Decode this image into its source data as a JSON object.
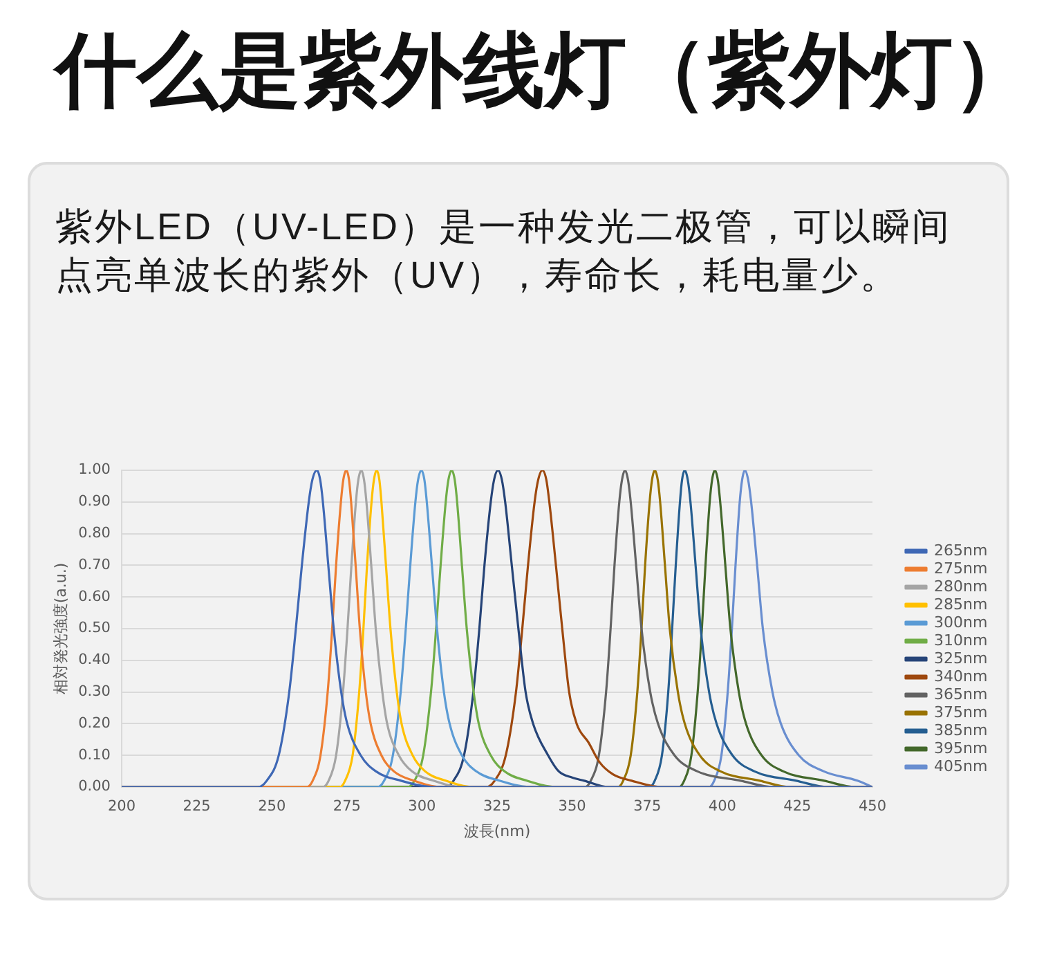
{
  "chart_data": {
    "type": "line",
    "title": "什么是紫外线灯（紫外灯）",
    "subtitle": "紫外LED（UV-LED）是一种发光二极管，可以瞬间点亮单波长的紫外（UV），寿命长，耗电量少。",
    "xlabel": "波長(nm)",
    "ylabel": "相対発光強度(a.u.)",
    "xlim": [
      200,
      450
    ],
    "xticks": [
      200,
      225,
      250,
      275,
      300,
      325,
      350,
      375,
      400,
      425,
      450
    ],
    "ylim": [
      0,
      1
    ],
    "yticks": [
      {
        "value": 0,
        "label": "0.00"
      },
      {
        "value": 0.1,
        "label": "0.10"
      },
      {
        "value": 0.2,
        "label": "0.20"
      },
      {
        "value": 0.3,
        "label": "0.30"
      },
      {
        "value": 0.4,
        "label": "0.40"
      },
      {
        "value": 0.5,
        "label": "0.50"
      },
      {
        "value": 0.6,
        "label": "0.60"
      },
      {
        "value": 0.7,
        "label": "0.70"
      },
      {
        "value": 0.8,
        "label": "0.80"
      },
      {
        "value": 0.9,
        "label": "0.90"
      },
      {
        "value": 1,
        "label": "1.00"
      }
    ],
    "grid": "y",
    "legend": "right",
    "marker": "none",
    "line_style": "solid",
    "series": [
      {
        "name": "265nm",
        "color": "#3f68b5",
        "x": [
          200,
          245.4,
          248.3,
          252.3,
          255.8,
          258.0,
          260.0,
          262.3,
          263.5,
          265.0,
          266.1,
          267.0,
          268.8,
          270.6,
          273.1,
          275.1,
          279.6,
          284.6,
          293.0,
          304.2,
          450
        ],
        "values": [
          0,
          0,
          0.02,
          0.1,
          0.3,
          0.5,
          0.7,
          0.9,
          0.97,
          1,
          0.97,
          0.9,
          0.7,
          0.5,
          0.3,
          0.2,
          0.1,
          0.05,
          0.02,
          0,
          0
        ]
      },
      {
        "name": "275nm",
        "color": "#ed7d31",
        "x": [
          200,
          261.6,
          263.6,
          266.2,
          268.6,
          270.1,
          271.4,
          273.0,
          273.8,
          274.8,
          275.7,
          276.4,
          277.9,
          279.3,
          281.3,
          282.9,
          286.5,
          290.6,
          297.3,
          306.3,
          450
        ],
        "values": [
          0,
          0,
          0.02,
          0.1,
          0.3,
          0.5,
          0.7,
          0.9,
          0.97,
          1,
          0.97,
          0.9,
          0.7,
          0.5,
          0.3,
          0.2,
          0.1,
          0.05,
          0.02,
          0,
          0
        ]
      },
      {
        "name": "280nm",
        "color": "#a5a5a5",
        "x": [
          200,
          266.9,
          268.9,
          271.4,
          273.7,
          275.2,
          276.5,
          278.0,
          278.8,
          279.8,
          280.7,
          281.5,
          283.1,
          284.6,
          286.8,
          288.4,
          292.3,
          296.6,
          303.8,
          313.4,
          450
        ],
        "values": [
          0,
          0,
          0.02,
          0.1,
          0.3,
          0.5,
          0.7,
          0.9,
          0.97,
          1,
          0.97,
          0.9,
          0.7,
          0.5,
          0.3,
          0.2,
          0.1,
          0.05,
          0.02,
          0,
          0
        ]
      },
      {
        "name": "285nm",
        "color": "#ffc000",
        "x": [
          200,
          272.6,
          274.4,
          276.9,
          279.1,
          280.5,
          281.7,
          283.2,
          284.0,
          284.9,
          285.8,
          286.5,
          288.0,
          289.5,
          291.6,
          293.2,
          296.9,
          301.0,
          307.9,
          317.1,
          450
        ],
        "values": [
          0,
          0,
          0.02,
          0.1,
          0.3,
          0.5,
          0.7,
          0.9,
          0.97,
          1,
          0.97,
          0.9,
          0.7,
          0.5,
          0.3,
          0.2,
          0.1,
          0.05,
          0.02,
          0,
          0
        ]
      },
      {
        "name": "300nm",
        "color": "#5b9bd5",
        "x": [
          200,
          285.2,
          287.4,
          290.3,
          292.9,
          294.6,
          296.1,
          297.8,
          298.7,
          299.8,
          300.8,
          301.6,
          303.3,
          305.0,
          307.3,
          309.2,
          313.3,
          318.0,
          325.8,
          336.2,
          450
        ],
        "values": [
          0,
          0,
          0.02,
          0.1,
          0.3,
          0.5,
          0.7,
          0.9,
          0.97,
          1,
          0.97,
          0.9,
          0.7,
          0.5,
          0.3,
          0.2,
          0.1,
          0.05,
          0.02,
          0,
          0
        ]
      },
      {
        "name": "310nm",
        "color": "#70ad47",
        "x": [
          200,
          295.3,
          297.5,
          300.4,
          303.0,
          304.7,
          306.2,
          307.9,
          308.8,
          309.9,
          310.9,
          311.7,
          313.3,
          314.9,
          317.2,
          318.9,
          322.9,
          327.4,
          334.9,
          344.9,
          450
        ],
        "values": [
          0,
          0,
          0.02,
          0.1,
          0.3,
          0.5,
          0.7,
          0.9,
          0.97,
          1,
          0.97,
          0.9,
          0.7,
          0.5,
          0.3,
          0.2,
          0.1,
          0.05,
          0.02,
          0,
          0
        ]
      },
      {
        "name": "325nm",
        "color": "#264478",
        "x": [
          200,
          307.9,
          310.5,
          314.0,
          317.1,
          319.1,
          320.8,
          322.9,
          324.0,
          325.3,
          326.6,
          327.7,
          329.9,
          332.1,
          334.5,
          337.0,
          342.0,
          345.5,
          350.0,
          354.0,
          362.0,
          450
        ],
        "values": [
          0,
          0,
          0.02,
          0.1,
          0.3,
          0.5,
          0.7,
          0.9,
          0.97,
          1,
          0.97,
          0.9,
          0.7,
          0.5,
          0.3,
          0.2,
          0.1,
          0.05,
          0.03,
          0.02,
          0,
          0
        ]
      },
      {
        "name": "340nm",
        "color": "#9e480e",
        "x": [
          200,
          321.3,
          324.2,
          327.9,
          331.3,
          333.4,
          335.3,
          337.5,
          338.7,
          340.1,
          341.4,
          342.4,
          344.6,
          346.7,
          349.0,
          351.5,
          355.5,
          359.0,
          363.6,
          369.8,
          380.0,
          450
        ],
        "values": [
          0,
          0,
          0.02,
          0.1,
          0.3,
          0.5,
          0.7,
          0.9,
          0.97,
          1,
          0.97,
          0.9,
          0.7,
          0.5,
          0.3,
          0.2,
          0.14,
          0.08,
          0.04,
          0.02,
          0,
          0
        ]
      },
      {
        "name": "365nm",
        "color": "#636363",
        "x": [
          200,
          354.2,
          356.2,
          358.9,
          361.3,
          362.8,
          364.1,
          365.7,
          366.6,
          367.6,
          368.6,
          369.5,
          371.3,
          373.1,
          376.0,
          378.6,
          384.1,
          391.6,
          406.1,
          417.1,
          450
        ],
        "values": [
          0,
          0,
          0.02,
          0.1,
          0.3,
          0.5,
          0.7,
          0.9,
          0.97,
          1,
          0.97,
          0.9,
          0.7,
          0.5,
          0.3,
          0.2,
          0.1,
          0.05,
          0.02,
          0,
          0
        ]
      },
      {
        "name": "375nm",
        "color": "#997300",
        "x": [
          200,
          365.2,
          367.0,
          369.5,
          371.7,
          373.1,
          374.3,
          375.8,
          376.6,
          377.5,
          378.5,
          379.3,
          380.9,
          382.5,
          385.2,
          387.5,
          392.5,
          399.3,
          412.5,
          422.5,
          450
        ],
        "values": [
          0,
          0,
          0.02,
          0.1,
          0.3,
          0.5,
          0.7,
          0.9,
          0.97,
          1,
          0.97,
          0.9,
          0.7,
          0.5,
          0.3,
          0.2,
          0.1,
          0.05,
          0.02,
          0,
          0
        ]
      },
      {
        "name": "385nm",
        "color": "#255e91",
        "x": [
          200,
          375.7,
          377.5,
          379.9,
          382.0,
          383.3,
          384.5,
          385.9,
          386.6,
          387.5,
          388.5,
          389.4,
          391.1,
          392.8,
          395.6,
          398.1,
          403.4,
          410.6,
          424.6,
          435.2,
          450
        ],
        "values": [
          0,
          0,
          0.02,
          0.1,
          0.3,
          0.5,
          0.7,
          0.9,
          0.97,
          1,
          0.97,
          0.9,
          0.7,
          0.5,
          0.3,
          0.2,
          0.1,
          0.05,
          0.02,
          0,
          0
        ]
      },
      {
        "name": "395nm",
        "color": "#43682b",
        "x": [
          200,
          385.5,
          387.3,
          389.7,
          391.8,
          393.2,
          394.4,
          395.8,
          396.6,
          397.5,
          398.5,
          399.3,
          401.0,
          402.7,
          405.5,
          407.9,
          413.1,
          420.2,
          433.9,
          444.3,
          450
        ],
        "values": [
          0,
          0,
          0.02,
          0.1,
          0.3,
          0.5,
          0.7,
          0.9,
          0.97,
          1,
          0.97,
          0.9,
          0.7,
          0.5,
          0.3,
          0.2,
          0.1,
          0.05,
          0.02,
          0,
          0
        ]
      },
      {
        "name": "405nm",
        "color": "#698ed0",
        "x": [
          200,
          395.5,
          397.3,
          399.7,
          401.8,
          403.2,
          404.4,
          405.8,
          406.6,
          407.5,
          408.6,
          409.6,
          411.6,
          413.5,
          416.7,
          419.5,
          425.5,
          433.7,
          445.0,
          450
        ],
        "values": [
          0,
          0,
          0.02,
          0.1,
          0.3,
          0.5,
          0.7,
          0.9,
          0.97,
          1,
          0.97,
          0.9,
          0.7,
          0.5,
          0.3,
          0.2,
          0.1,
          0.05,
          0.02,
          0
        ]
      }
    ]
  }
}
